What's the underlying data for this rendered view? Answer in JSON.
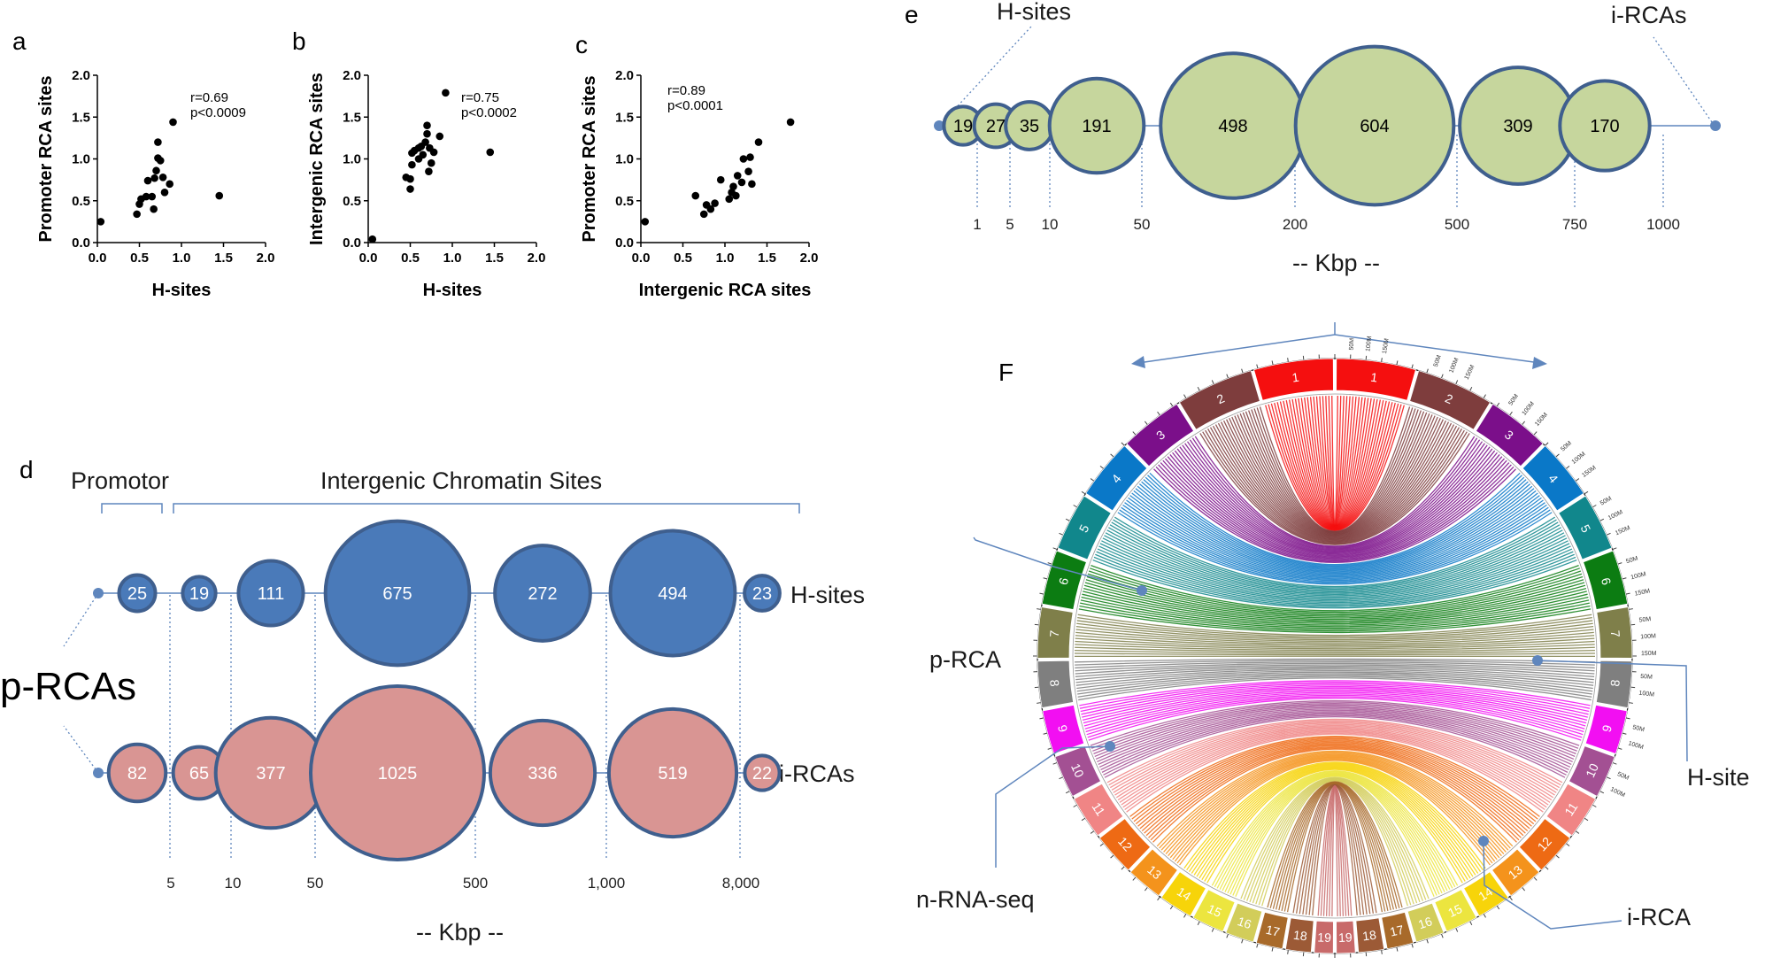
{
  "chart_data": [
    {
      "panel": "a",
      "type": "scatter",
      "xlabel": "H-sites",
      "ylabel": "Promoter RCA sites",
      "xlim": [
        0,
        2.0
      ],
      "ylim": [
        0,
        2.0
      ],
      "xticks": [
        "0.0",
        "0.5",
        "1.0",
        "1.5",
        "2.0"
      ],
      "yticks": [
        "0.0",
        "0.5",
        "1.0",
        "1.5",
        "2.0"
      ],
      "annotation": [
        "r=0.69",
        "p<0.0009"
      ],
      "points": [
        [
          0.04,
          0.25
        ],
        [
          0.47,
          0.34
        ],
        [
          0.5,
          0.46
        ],
        [
          0.52,
          0.52
        ],
        [
          0.58,
          0.55
        ],
        [
          0.6,
          0.74
        ],
        [
          0.65,
          0.55
        ],
        [
          0.67,
          0.4
        ],
        [
          0.68,
          0.77
        ],
        [
          0.7,
          0.86
        ],
        [
          0.72,
          1.01
        ],
        [
          0.72,
          1.2
        ],
        [
          0.75,
          0.98
        ],
        [
          0.78,
          0.78
        ],
        [
          0.8,
          0.6
        ],
        [
          0.86,
          0.7
        ],
        [
          0.9,
          1.44
        ],
        [
          1.45,
          0.56
        ]
      ]
    },
    {
      "panel": "b",
      "type": "scatter",
      "xlabel": "H-sites",
      "ylabel": "Intergenic RCA sites",
      "xlim": [
        0,
        2.0
      ],
      "ylim": [
        0,
        2.0
      ],
      "xticks": [
        "0.0",
        "0.5",
        "1.0",
        "1.5",
        "2.0"
      ],
      "yticks": [
        "0.0",
        "0.5",
        "1.0",
        "1.5",
        "2.0"
      ],
      "annotation": [
        "r=0.75",
        "p<0.0002"
      ],
      "points": [
        [
          0.05,
          0.04
        ],
        [
          0.45,
          0.78
        ],
        [
          0.5,
          0.76
        ],
        [
          0.5,
          0.64
        ],
        [
          0.52,
          0.93
        ],
        [
          0.52,
          1.07
        ],
        [
          0.55,
          1.1
        ],
        [
          0.6,
          1.0
        ],
        [
          0.6,
          1.13
        ],
        [
          0.63,
          1.15
        ],
        [
          0.65,
          1.05
        ],
        [
          0.68,
          1.2
        ],
        [
          0.7,
          1.3
        ],
        [
          0.7,
          1.4
        ],
        [
          0.72,
          0.85
        ],
        [
          0.73,
          1.13
        ],
        [
          0.75,
          0.95
        ],
        [
          0.78,
          1.08
        ],
        [
          0.85,
          1.27
        ],
        [
          0.92,
          1.79
        ],
        [
          1.45,
          1.08
        ]
      ]
    },
    {
      "panel": "c",
      "type": "scatter",
      "xlabel": "Intergenic RCA sites",
      "ylabel": "Promoter RCA sites",
      "xlim": [
        0,
        2.0
      ],
      "ylim": [
        0,
        2.0
      ],
      "xticks": [
        "0.0",
        "0.5",
        "1.0",
        "1.5",
        "2.0"
      ],
      "yticks": [
        "0.0",
        "0.5",
        "1.0",
        "1.5",
        "2.0"
      ],
      "annotation": [
        "r=0.89",
        "p<0.0001"
      ],
      "points": [
        [
          0.05,
          0.25
        ],
        [
          0.65,
          0.56
        ],
        [
          0.75,
          0.34
        ],
        [
          0.78,
          0.45
        ],
        [
          0.83,
          0.4
        ],
        [
          0.88,
          0.47
        ],
        [
          0.95,
          0.75
        ],
        [
          1.05,
          0.52
        ],
        [
          1.08,
          0.6
        ],
        [
          1.1,
          0.67
        ],
        [
          1.13,
          0.56
        ],
        [
          1.15,
          0.8
        ],
        [
          1.2,
          0.72
        ],
        [
          1.22,
          1.0
        ],
        [
          1.28,
          0.85
        ],
        [
          1.3,
          1.02
        ],
        [
          1.32,
          0.7
        ],
        [
          1.4,
          1.2
        ],
        [
          1.78,
          1.44
        ]
      ]
    },
    {
      "panel": "d",
      "type": "bubble",
      "header_left": "Promotor",
      "header_right": "Intergenic Chromatin Sites",
      "side_label": "p-RCAs",
      "x_unit_label": "-- Kbp --",
      "x_ticks": [
        "5",
        "10",
        "50",
        "500",
        "1,000",
        "8,000"
      ],
      "series": [
        {
          "name": "H-sites",
          "values": [
            25,
            19,
            111,
            675,
            272,
            494,
            23
          ]
        },
        {
          "name": "i-RCAs",
          "values": [
            82,
            65,
            377,
            1025,
            336,
            519,
            22
          ]
        }
      ]
    },
    {
      "panel": "e",
      "type": "bubble",
      "left_label": "H-sites",
      "right_label": "i-RCAs",
      "x_unit_label": "-- Kbp --",
      "x_ticks": [
        "1",
        "5",
        "10",
        "50",
        "200",
        "500",
        "750",
        "1000"
      ],
      "series": [
        {
          "name": "H-sites",
          "values": [
            19,
            27,
            35,
            191,
            498,
            604,
            309,
            170
          ]
        }
      ]
    },
    {
      "panel": "F",
      "type": "circos",
      "chromosomes": [
        "1",
        "2",
        "3",
        "4",
        "5",
        "6",
        "7",
        "8",
        "9",
        "10",
        "11",
        "12",
        "13",
        "14",
        "15",
        "16",
        "17",
        "18",
        "19"
      ],
      "chromosome_colors": [
        "#f50f0f",
        "#7e3d3d",
        "#7b0f8a",
        "#0a78c8",
        "#11878c",
        "#0c7c12",
        "#7f7f4a",
        "#7f7f7f",
        "#f20ff2",
        "#a35093",
        "#f08585",
        "#ee6a14",
        "#f4931c",
        "#f7d40a",
        "#ece53f",
        "#d2cd5a",
        "#a86a2a",
        "#9c5a36",
        "#c86a6a"
      ],
      "labels": [
        "p-RCA",
        "H-site",
        "n-RNA-seq",
        "i-RCA"
      ],
      "scale_marks": [
        "50M",
        "100M",
        "150M"
      ]
    }
  ],
  "panel_letters": {
    "a": "a",
    "b": "b",
    "c": "c",
    "d": "d",
    "e": "e",
    "f": "F"
  },
  "colors": {
    "dot": "#000000",
    "blue": "#4a7ab9",
    "pink": "#d99593",
    "green": "#c6d69d",
    "outline": "#3f5f8e",
    "line": "#5f86bd"
  }
}
